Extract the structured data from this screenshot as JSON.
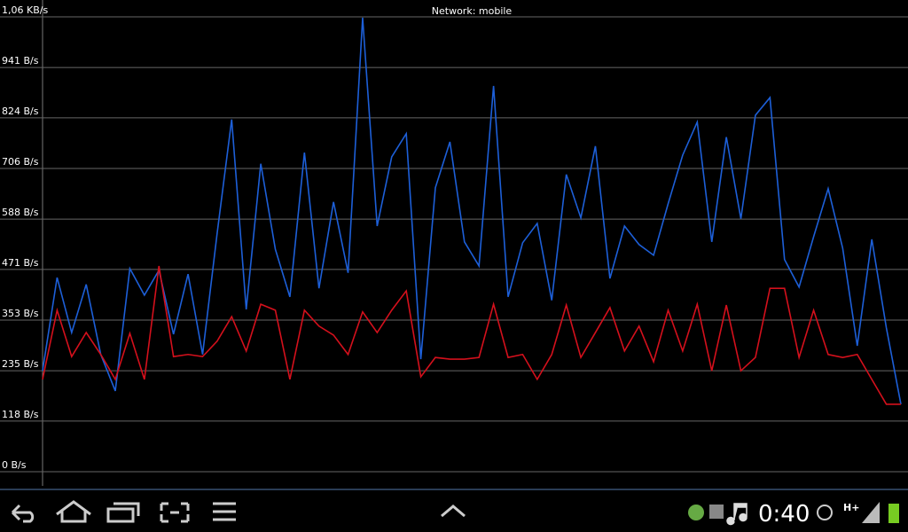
{
  "chart_data": {
    "type": "line",
    "title": "Network: mobile",
    "categories": [
      null,
      null,
      null,
      null,
      null,
      null,
      null,
      null,
      null,
      null,
      null,
      null,
      null,
      null,
      null,
      null,
      null,
      null,
      null,
      null,
      null,
      null,
      null,
      null,
      null,
      null,
      null,
      null,
      null,
      null,
      null,
      null,
      null,
      null,
      null,
      null,
      null,
      null,
      null,
      null,
      null,
      null,
      null,
      null,
      null,
      null,
      null,
      null,
      null,
      null,
      null,
      null,
      null,
      null,
      null,
      null,
      null,
      null,
      null,
      null
    ],
    "series": [
      {
        "color": "#1d5fd8",
        "values": [
          235,
          452,
          324,
          436,
          273,
          188,
          473,
          411,
          469,
          320,
          460,
          273,
          555,
          820,
          378,
          717,
          518,
          407,
          743,
          427,
          628,
          463,
          1057,
          572,
          733,
          787,
          262,
          661,
          768,
          535,
          479,
          898,
          407,
          533,
          578,
          399,
          692,
          591,
          758,
          450,
          572,
          529,
          504,
          624,
          737,
          814,
          535,
          779,
          589,
          830,
          871,
          494,
          430,
          547,
          659,
          520,
          293,
          541,
          335,
          157
        ]
      },
      {
        "color": "#d4101c",
        "values": [
          215,
          376,
          268,
          324,
          273,
          215,
          322,
          215,
          479,
          268,
          273,
          268,
          304,
          361,
          281,
          390,
          376,
          215,
          376,
          339,
          318,
          273,
          372,
          324,
          376,
          421,
          221,
          266,
          262,
          262,
          266,
          390,
          266,
          273,
          215,
          273,
          388,
          266,
          324,
          382,
          281,
          339,
          256,
          376,
          281,
          390,
          235,
          388,
          235,
          266,
          427,
          427,
          266,
          376,
          273,
          266,
          273,
          215,
          157,
          157
        ]
      }
    ],
    "ylim": [
      0,
      1059
    ],
    "yticks": [
      {
        "value": 0,
        "label": "0 B/s"
      },
      {
        "value": 118,
        "label": "118 B/s"
      },
      {
        "value": 235,
        "label": "235 B/s"
      },
      {
        "value": 353,
        "label": "353 B/s"
      },
      {
        "value": 471,
        "label": "471 B/s"
      },
      {
        "value": 588,
        "label": "588 B/s"
      },
      {
        "value": 706,
        "label": "706 B/s"
      },
      {
        "value": 824,
        "label": "824 B/s"
      },
      {
        "value": 941,
        "label": "941 B/s"
      },
      {
        "value": 1059,
        "label": "1,06 KB/s"
      }
    ],
    "grid": true
  },
  "status_bar": {
    "time": "0:40",
    "network": "H+"
  }
}
